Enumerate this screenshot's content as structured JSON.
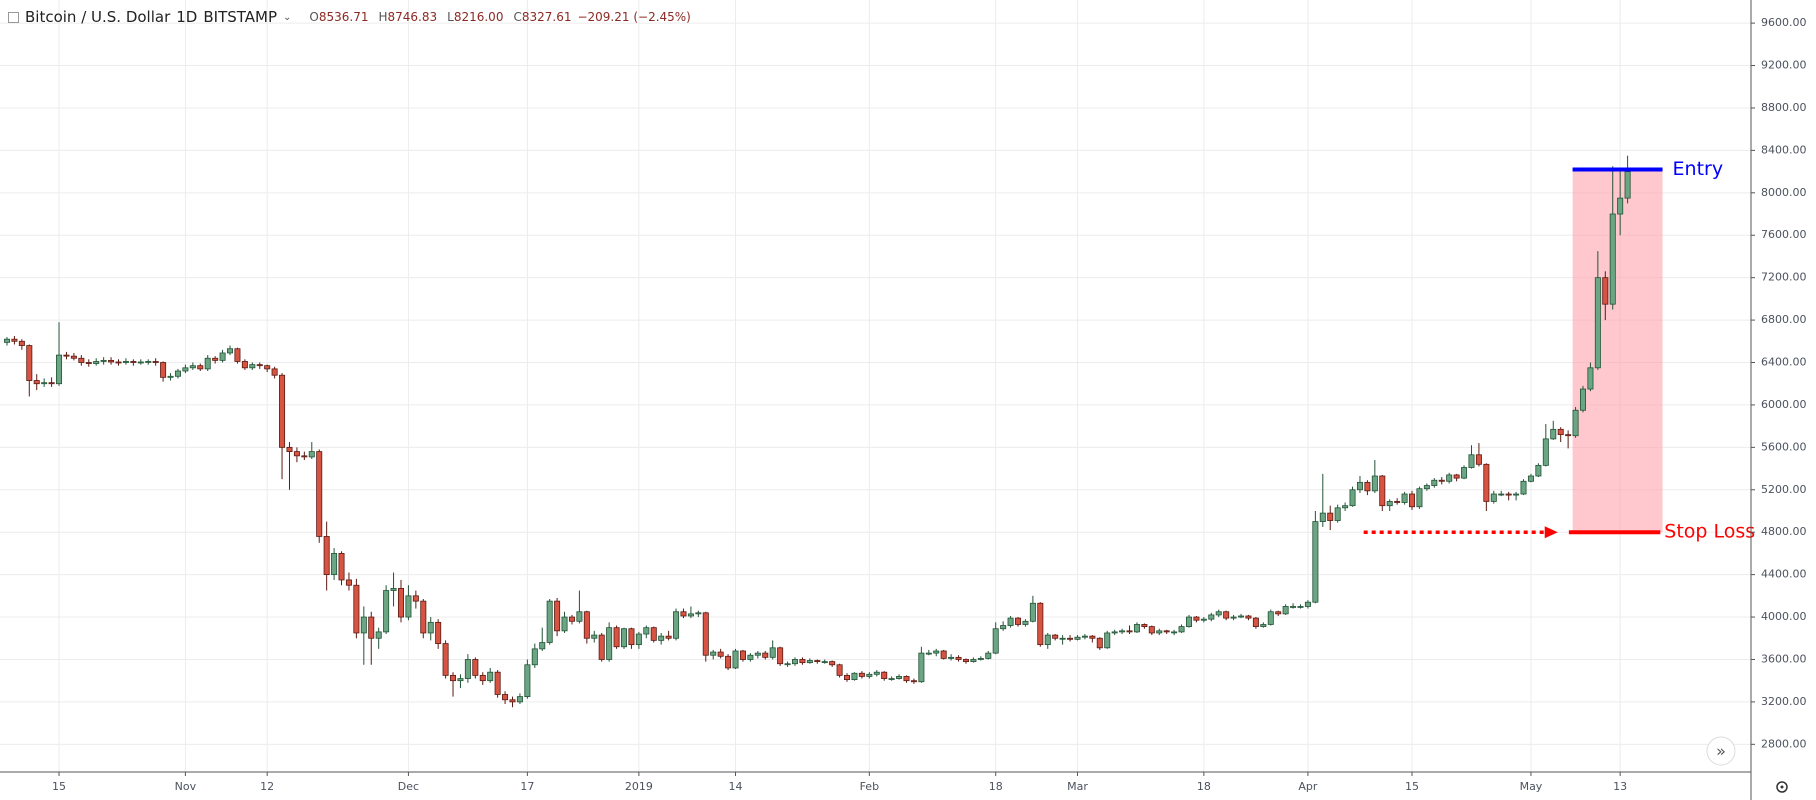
{
  "header": {
    "symbol": "Bitcoin / U.S. Dollar",
    "interval": "1D",
    "exchange": "BITSTAMP",
    "open_label": "O",
    "open": "8536.71",
    "high_label": "H",
    "high": "8746.83",
    "low_label": "L",
    "low": "8216.00",
    "close_label": "C",
    "close": "8327.61",
    "change": "−209.21 (−2.45%)"
  },
  "chart_data": {
    "type": "candlestick",
    "x": [
      0,
      1,
      2,
      3,
      4,
      5,
      6,
      7,
      8,
      9,
      10,
      11,
      12,
      13,
      14,
      15,
      16,
      17,
      18,
      19,
      20,
      21,
      22,
      23,
      24,
      25,
      26,
      27,
      28,
      29,
      30,
      31,
      32,
      33,
      34,
      35,
      36,
      37,
      38,
      39,
      40,
      41,
      42,
      43,
      44,
      45,
      46,
      47,
      48,
      49,
      50,
      51,
      52,
      53,
      54,
      55,
      56,
      57,
      58,
      59,
      60,
      61,
      62,
      63,
      64,
      65,
      66,
      67,
      68,
      69,
      70,
      71,
      72,
      73,
      74,
      75,
      76,
      77,
      78,
      79,
      80,
      81,
      82,
      83,
      84,
      85,
      86,
      87,
      88,
      89,
      90,
      91,
      92,
      93,
      94,
      95,
      96,
      97,
      98,
      99,
      100,
      101,
      102,
      103,
      104,
      105,
      106,
      107,
      108,
      109,
      110,
      111,
      112,
      113,
      114,
      115,
      116,
      117,
      118,
      119,
      120,
      121,
      122,
      123,
      124,
      125,
      126,
      127,
      128,
      129,
      130,
      131,
      132,
      133,
      134,
      135,
      136,
      137,
      138,
      139,
      140,
      141,
      142,
      143,
      144,
      145,
      146,
      147,
      148,
      149,
      150,
      151,
      152,
      153,
      154,
      155,
      156,
      157,
      158,
      159,
      160,
      161,
      162,
      163,
      164,
      165,
      166,
      167,
      168,
      169,
      170,
      171,
      172,
      173,
      174,
      175,
      176,
      177,
      178,
      179,
      180,
      181,
      182,
      183,
      184,
      185,
      186,
      187,
      188,
      189,
      190,
      191,
      192,
      193,
      194,
      195,
      196,
      197,
      198,
      199,
      200,
      201,
      202,
      203,
      204,
      205,
      206,
      207,
      208,
      209,
      210,
      211,
      212,
      213,
      214,
      215,
      216,
      217,
      218
    ],
    "open": [
      6590,
      6620,
      6600,
      6560,
      6230,
      6200,
      6210,
      6200,
      6470,
      6460,
      6440,
      6400,
      6390,
      6410,
      6420,
      6405,
      6400,
      6410,
      6400,
      6405,
      6410,
      6400,
      6260,
      6270,
      6320,
      6350,
      6370,
      6340,
      6440,
      6420,
      6490,
      6530,
      6410,
      6350,
      6380,
      6370,
      6340,
      6280,
      5600,
      5560,
      5520,
      5510,
      5560,
      4760,
      4400,
      4600,
      4350,
      4300,
      3850,
      4000,
      3800,
      3860,
      4250,
      4270,
      4000,
      4200,
      4150,
      3850,
      3950,
      3750,
      3450,
      3400,
      3420,
      3600,
      3450,
      3400,
      3480,
      3270,
      3220,
      3200,
      3250,
      3550,
      3700,
      3760,
      4150,
      3870,
      4000,
      3960,
      4050,
      3800,
      3830,
      3600,
      3900,
      3720,
      3890,
      3740,
      3840,
      3900,
      3780,
      3820,
      3800,
      4050,
      4010,
      4030,
      4040,
      3640,
      3670,
      3630,
      3520,
      3680,
      3600,
      3640,
      3660,
      3620,
      3710,
      3560,
      3560,
      3600,
      3570,
      3590,
      3580,
      3580,
      3550,
      3450,
      3410,
      3470,
      3440,
      3460,
      3480,
      3420,
      3420,
      3440,
      3400,
      3390,
      3660,
      3660,
      3680,
      3610,
      3620,
      3600,
      3580,
      3600,
      3610,
      3660,
      3890,
      3920,
      3990,
      3930,
      3960,
      4130,
      3740,
      3830,
      3800,
      3800,
      3790,
      3810,
      3820,
      3800,
      3710,
      3850,
      3860,
      3870,
      3860,
      3930,
      3910,
      3850,
      3870,
      3860,
      3860,
      3910,
      4000,
      3970,
      3980,
      4020,
      4050,
      3990,
      4000,
      4010,
      3990,
      3910,
      3930,
      4050,
      4030,
      4100,
      4100,
      4100,
      4140,
      4900,
      4980,
      4910,
      5030,
      5050,
      5200,
      5270,
      5190,
      5330,
      5050,
      5090,
      5080,
      5160,
      5040,
      5210,
      5240,
      5290,
      5280,
      5340,
      5310,
      5410,
      5530,
      5440,
      5090,
      5160,
      5160,
      5150,
      5160,
      5280,
      5330,
      5430,
      5680,
      5770,
      5720,
      5710,
      5950,
      6150,
      6350,
      7200,
      6950,
      7800,
      7950
    ],
    "high": [
      6640,
      6650,
      6620,
      6570,
      6290,
      6250,
      6260,
      6780,
      6500,
      6490,
      6470,
      6430,
      6440,
      6450,
      6450,
      6430,
      6440,
      6430,
      6430,
      6430,
      6440,
      6410,
      6300,
      6340,
      6380,
      6400,
      6390,
      6470,
      6460,
      6520,
      6560,
      6540,
      6430,
      6400,
      6400,
      6380,
      6360,
      6300,
      5650,
      5600,
      5560,
      5650,
      5580,
      4900,
      4650,
      4620,
      4420,
      4360,
      4100,
      4050,
      3900,
      4300,
      4420,
      4350,
      4300,
      4250,
      4170,
      4000,
      3980,
      3780,
      3480,
      3460,
      3650,
      3620,
      3480,
      3520,
      3500,
      3300,
      3250,
      3280,
      3600,
      3750,
      3900,
      4170,
      4180,
      4050,
      4020,
      4250,
      4060,
      3870,
      3850,
      3950,
      3920,
      3900,
      3900,
      3860,
      3920,
      3910,
      3850,
      3870,
      4080,
      4080,
      4100,
      4060,
      4050,
      3690,
      3700,
      3650,
      3700,
      3690,
      3660,
      3680,
      3680,
      3780,
      3720,
      3580,
      3620,
      3620,
      3610,
      3600,
      3600,
      3590,
      3560,
      3470,
      3480,
      3490,
      3480,
      3500,
      3490,
      3440,
      3460,
      3450,
      3420,
      3720,
      3690,
      3700,
      3690,
      3650,
      3640,
      3610,
      3620,
      3630,
      3680,
      3950,
      3960,
      4010,
      4000,
      3980,
      4200,
      4140,
      3850,
      3840,
      3830,
      3830,
      3830,
      3840,
      3830,
      3810,
      3870,
      3880,
      3890,
      3920,
      3950,
      3940,
      3920,
      3890,
      3880,
      3880,
      3930,
      4020,
      4010,
      4000,
      4040,
      4070,
      4060,
      4020,
      4030,
      4020,
      4000,
      3950,
      4070,
      4060,
      4120,
      4130,
      4120,
      4160,
      5000,
      5350,
      5050,
      5060,
      5080,
      5230,
      5330,
      5290,
      5480,
      5340,
      5110,
      5120,
      5180,
      5190,
      5230,
      5260,
      5310,
      5320,
      5360,
      5350,
      5430,
      5620,
      5640,
      5450,
      5190,
      5190,
      5180,
      5180,
      5300,
      5350,
      5450,
      5820,
      5850,
      5790,
      5760,
      5980,
      6180,
      6400,
      7450,
      7260,
      8250,
      8200,
      8350
    ],
    "low": [
      6560,
      6570,
      6520,
      6080,
      6140,
      6170,
      6170,
      6180,
      6430,
      6420,
      6370,
      6360,
      6370,
      6380,
      6380,
      6370,
      6380,
      6370,
      6380,
      6380,
      6370,
      6220,
      6230,
      6250,
      6300,
      6330,
      6320,
      6320,
      6390,
      6400,
      6470,
      6390,
      6330,
      6330,
      6340,
      6310,
      6250,
      5300,
      5200,
      5460,
      5480,
      5490,
      4700,
      4250,
      4350,
      4300,
      4250,
      3800,
      3550,
      3550,
      3700,
      3840,
      4100,
      3950,
      3970,
      4080,
      3800,
      3780,
      3700,
      3420,
      3250,
      3330,
      3380,
      3420,
      3360,
      3380,
      3240,
      3180,
      3150,
      3180,
      3230,
      3520,
      3680,
      3740,
      3820,
      3850,
      3930,
      3940,
      3750,
      3760,
      3580,
      3580,
      3700,
      3700,
      3700,
      3700,
      3800,
      3760,
      3740,
      3780,
      3780,
      3990,
      3990,
      4000,
      3580,
      3600,
      3610,
      3500,
      3510,
      3580,
      3580,
      3610,
      3600,
      3600,
      3540,
      3530,
      3540,
      3550,
      3560,
      3560,
      3560,
      3530,
      3430,
      3390,
      3400,
      3420,
      3420,
      3440,
      3400,
      3400,
      3410,
      3380,
      3370,
      3380,
      3640,
      3630,
      3600,
      3590,
      3580,
      3560,
      3570,
      3590,
      3600,
      3650,
      3870,
      3900,
      3910,
      3910,
      3950,
      3720,
      3700,
      3780,
      3740,
      3770,
      3780,
      3790,
      3760,
      3690,
      3700,
      3830,
      3840,
      3840,
      3850,
      3890,
      3830,
      3830,
      3840,
      3830,
      3850,
      3900,
      3950,
      3950,
      3960,
      4000,
      3970,
      3970,
      3990,
      3970,
      3890,
      3900,
      3920,
      4010,
      4020,
      4080,
      4080,
      4080,
      4130,
      4850,
      4820,
      4890,
      5000,
      5040,
      5170,
      5150,
      5170,
      5000,
      5000,
      5060,
      5060,
      5010,
      5020,
      5190,
      5220,
      5250,
      5260,
      5280,
      5300,
      5400,
      5420,
      5000,
      5070,
      5140,
      5100,
      5100,
      5150,
      5270,
      5320,
      5420,
      5670,
      5650,
      5590,
      5690,
      5930,
      6130,
      6330,
      6800,
      6900,
      7600,
      7900
    ],
    "close": [
      6620,
      6600,
      6560,
      6230,
      6200,
      6210,
      6200,
      6470,
      6460,
      6440,
      6400,
      6390,
      6410,
      6420,
      6405,
      6400,
      6410,
      6400,
      6405,
      6410,
      6400,
      6260,
      6270,
      6320,
      6350,
      6370,
      6340,
      6440,
      6420,
      6490,
      6530,
      6410,
      6350,
      6380,
      6370,
      6340,
      6280,
      5600,
      5560,
      5520,
      5510,
      5560,
      4760,
      4400,
      4600,
      4350,
      4300,
      3850,
      4000,
      3800,
      3860,
      4250,
      4270,
      4000,
      4200,
      4150,
      3850,
      3950,
      3750,
      3450,
      3400,
      3420,
      3600,
      3450,
      3400,
      3480,
      3270,
      3220,
      3200,
      3250,
      3550,
      3700,
      3760,
      4150,
      3870,
      4000,
      3960,
      4050,
      3800,
      3830,
      3600,
      3900,
      3720,
      3890,
      3740,
      3840,
      3900,
      3780,
      3820,
      3800,
      4050,
      4010,
      4030,
      4040,
      3640,
      3670,
      3630,
      3520,
      3680,
      3600,
      3640,
      3660,
      3620,
      3710,
      3560,
      3560,
      3600,
      3570,
      3590,
      3580,
      3580,
      3550,
      3450,
      3410,
      3470,
      3440,
      3460,
      3480,
      3420,
      3420,
      3440,
      3400,
      3390,
      3660,
      3660,
      3680,
      3610,
      3620,
      3600,
      3580,
      3600,
      3610,
      3660,
      3890,
      3920,
      3990,
      3930,
      3960,
      4130,
      3740,
      3830,
      3800,
      3800,
      3790,
      3810,
      3820,
      3800,
      3710,
      3850,
      3860,
      3870,
      3860,
      3930,
      3910,
      3850,
      3870,
      3860,
      3860,
      3910,
      4000,
      3970,
      3980,
      4020,
      4050,
      3990,
      4000,
      4010,
      3990,
      3910,
      3930,
      4050,
      4030,
      4100,
      4100,
      4100,
      4140,
      4900,
      4980,
      4910,
      5030,
      5050,
      5200,
      5270,
      5190,
      5330,
      5050,
      5090,
      5080,
      5160,
      5040,
      5210,
      5240,
      5290,
      5280,
      5340,
      5310,
      5410,
      5530,
      5440,
      5090,
      5160,
      5160,
      5150,
      5160,
      5280,
      5330,
      5430,
      5680,
      5770,
      5720,
      5710,
      5950,
      6150,
      6350,
      7200,
      6950,
      7800,
      7950,
      8200
    ],
    "up_color": "#6ba583",
    "down_color": "#d75442",
    "xlim": [
      -0.94,
      234.6
    ],
    "ylim": [
      2539,
      9818
    ],
    "xticks": [
      {
        "value": 7,
        "label": "15"
      },
      {
        "value": 24,
        "label": "Nov"
      },
      {
        "value": 35,
        "label": "12"
      },
      {
        "value": 54,
        "label": "Dec"
      },
      {
        "value": 70,
        "label": "17"
      },
      {
        "value": 85,
        "label": "2019"
      },
      {
        "value": 98,
        "label": "14"
      },
      {
        "value": 116,
        "label": "Feb"
      },
      {
        "value": 133,
        "label": "18"
      },
      {
        "value": 144,
        "label": "Mar"
      },
      {
        "value": 161,
        "label": "18"
      },
      {
        "value": 175,
        "label": "Apr"
      },
      {
        "value": 189,
        "label": "15"
      },
      {
        "value": 205,
        "label": "May"
      },
      {
        "value": 217,
        "label": "13"
      }
    ],
    "yticks": [
      {
        "value": 2800,
        "label": "2800.00"
      },
      {
        "value": 3200,
        "label": "3200.00"
      },
      {
        "value": 3600,
        "label": "3600.00"
      },
      {
        "value": 4000,
        "label": "4000.00"
      },
      {
        "value": 4400,
        "label": "4400.00"
      },
      {
        "value": 4800,
        "label": "4800.00"
      },
      {
        "value": 5200,
        "label": "5200.00"
      },
      {
        "value": 5600,
        "label": "5600.00"
      },
      {
        "value": 6000,
        "label": "6000.00"
      },
      {
        "value": 6400,
        "label": "6400.00"
      },
      {
        "value": 6800,
        "label": "6800.00"
      },
      {
        "value": 7200,
        "label": "7200.00"
      },
      {
        "value": 7600,
        "label": "7600.00"
      },
      {
        "value": 8000,
        "label": "8000.00"
      },
      {
        "value": 8400,
        "label": "8400.00"
      },
      {
        "value": 8800,
        "label": "8800.00"
      },
      {
        "value": 9200,
        "label": "9200.00"
      },
      {
        "value": 9600,
        "label": "9600.00"
      }
    ],
    "grid": true,
    "annotations": [
      {
        "label": "Entry",
        "value": 8220,
        "color": "#0000ff",
        "x": [
          210.6,
          222.7
        ]
      },
      {
        "label": "Stop Loss",
        "value": 4800,
        "color": "#ff0000",
        "x": [
          210.1,
          222.4
        ],
        "arrow_x": [
          182.5,
          208.6
        ]
      }
    ],
    "zone": {
      "x": [
        210.6,
        222.7
      ],
      "color": "#ff9aa6"
    }
  }
}
